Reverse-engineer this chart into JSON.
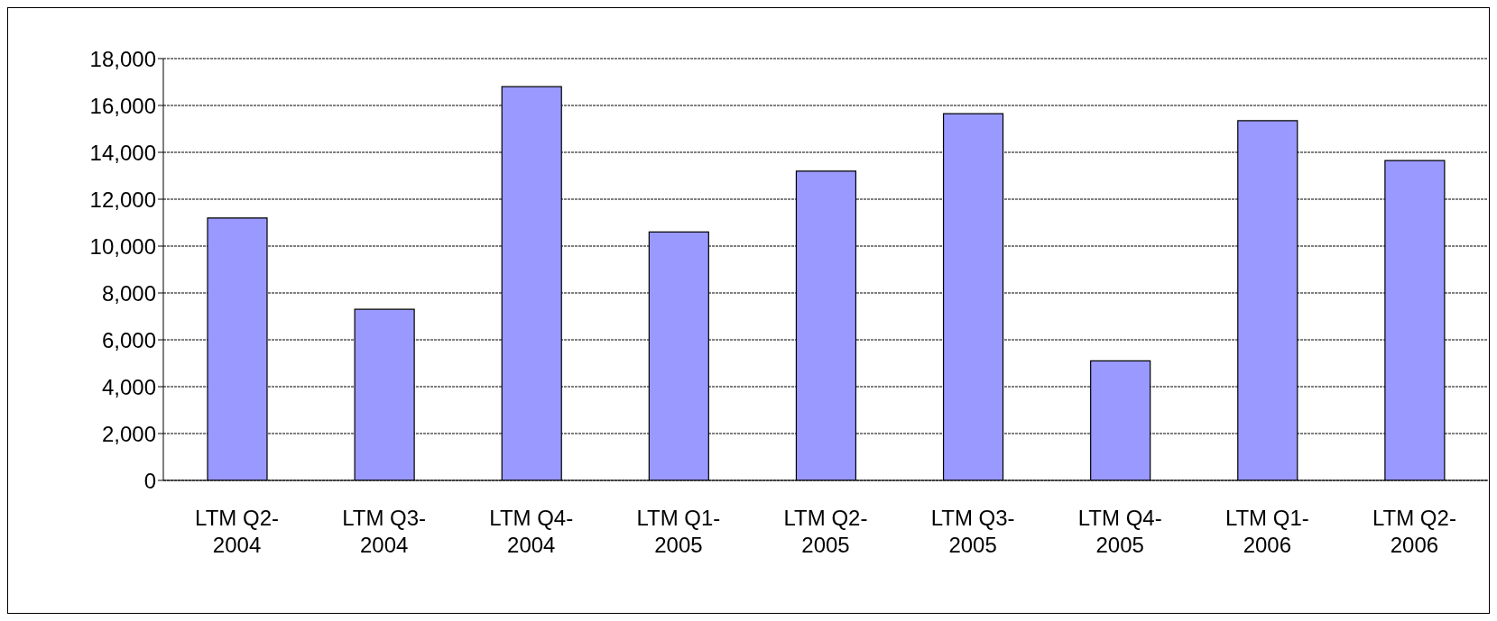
{
  "chart_data": {
    "type": "bar",
    "categories": [
      "LTM Q2-2004",
      "LTM Q3-2004",
      "LTM Q4-2004",
      "LTM Q1-2005",
      "LTM Q2-2005",
      "LTM Q3-2005",
      "LTM Q4-2005",
      "LTM Q1-2006",
      "LTM Q2-2006"
    ],
    "values": [
      11200,
      7300,
      16800,
      10600,
      13200,
      15650,
      5100,
      15350,
      13650
    ],
    "color": "#9999ff",
    "ylim": [
      0,
      18000
    ],
    "yticks": [
      {
        "value": 0,
        "label": "0"
      },
      {
        "value": 2000,
        "label": "2,000"
      },
      {
        "value": 4000,
        "label": "4,000"
      },
      {
        "value": 6000,
        "label": "6,000"
      },
      {
        "value": 8000,
        "label": "8,000"
      },
      {
        "value": 10000,
        "label": "10,000"
      },
      {
        "value": 12000,
        "label": "12,000"
      },
      {
        "value": 14000,
        "label": "14,000"
      },
      {
        "value": 16000,
        "label": "16,000"
      },
      {
        "value": 18000,
        "label": "18,000"
      }
    ],
    "grid": "y"
  }
}
